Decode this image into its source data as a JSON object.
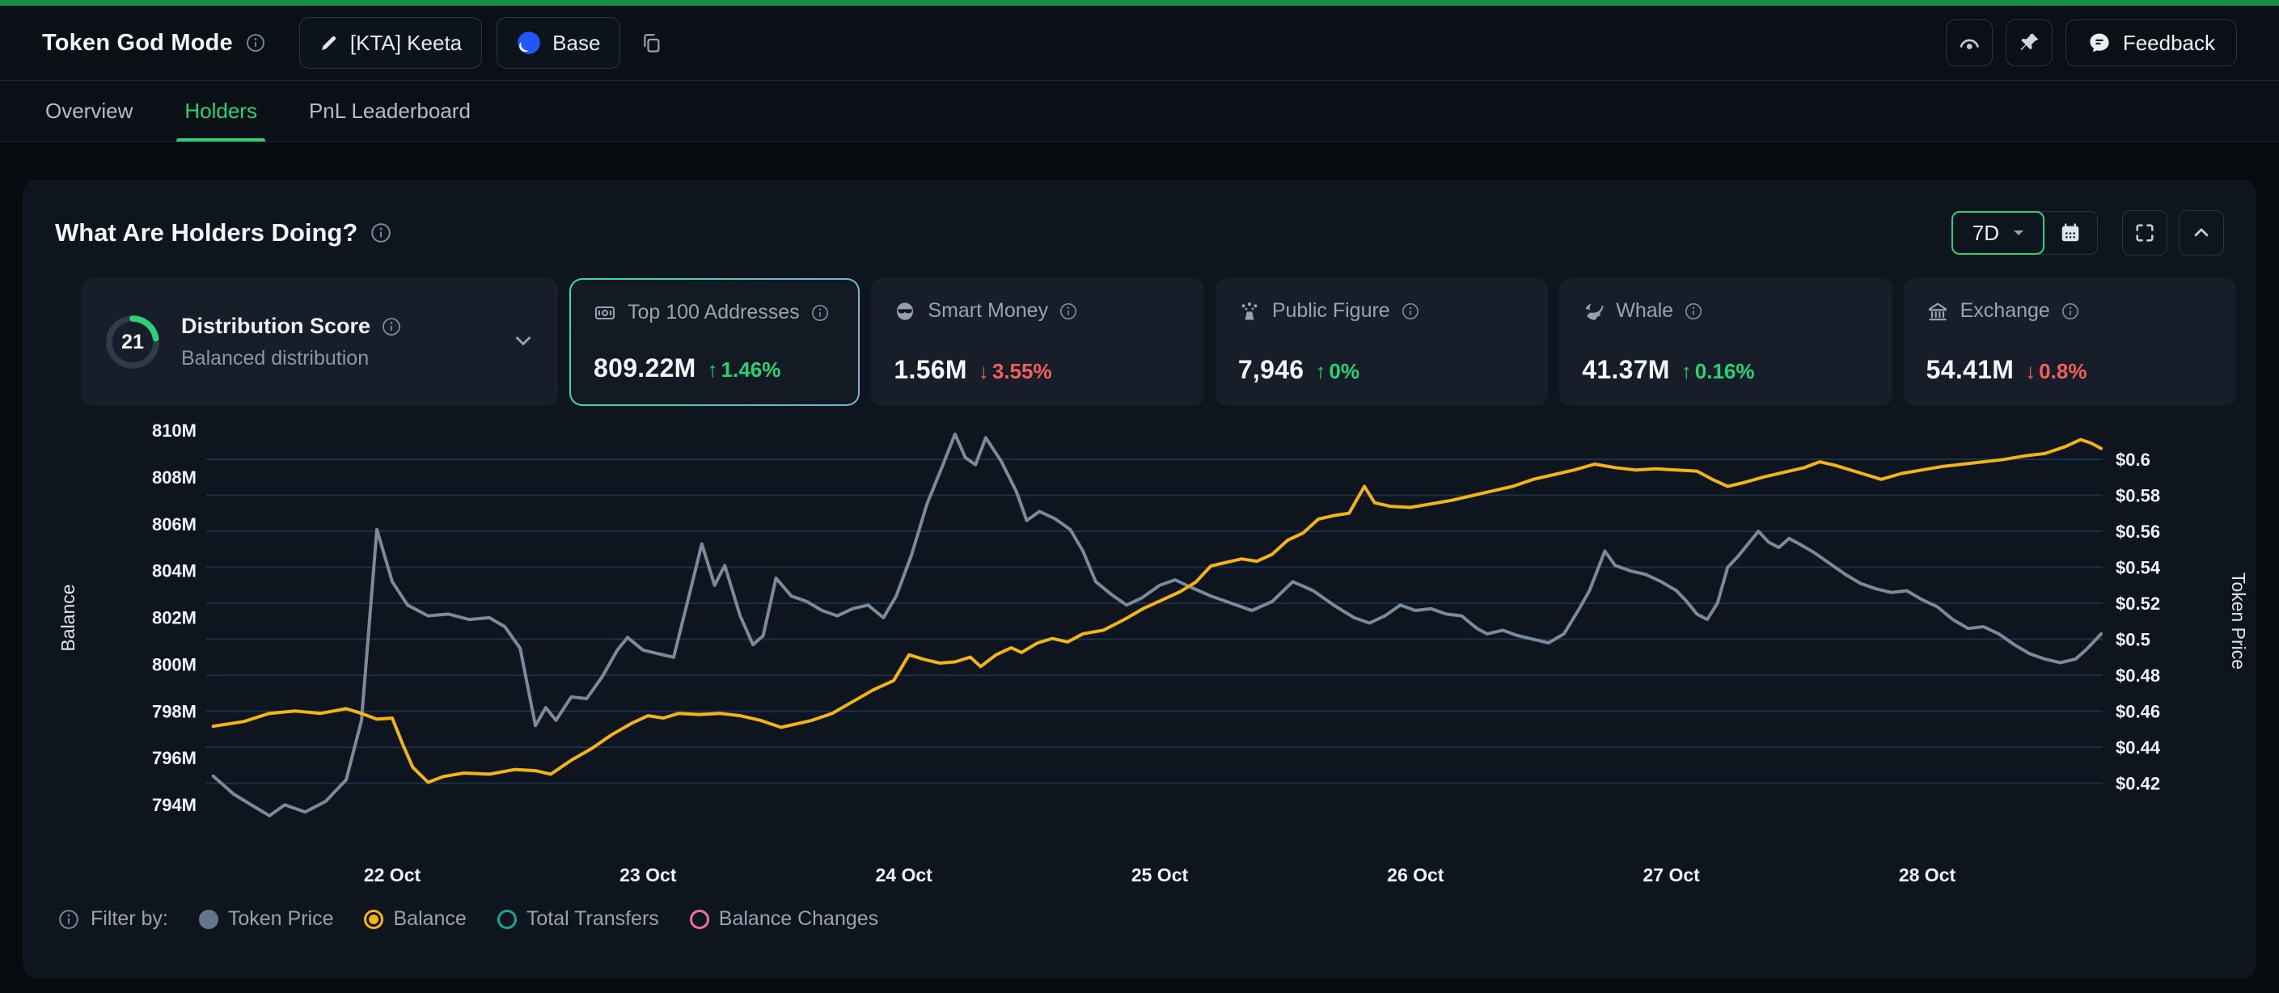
{
  "colors": {
    "accent_green": "#2bd175",
    "down_red": "#f0605c",
    "balance_yellow": "#f2b418",
    "price_gray": "#7b8a9b",
    "grid_blue": "#1c3148",
    "topstrip_green": "#16914c",
    "base_blue": "#2155ff"
  },
  "icons": {
    "info": "circle-i",
    "pencil": "edit",
    "copy": "overlapping-rects",
    "base-logo": "blue-disc",
    "watch": "arc-with-dot",
    "pin": "pushpin",
    "feedback": "speech-bubble",
    "dropdown-caret": "filled-triangle-down",
    "calendar": "calendar-grid",
    "fullscreen": "corner-brackets",
    "collapse": "chevron-up",
    "expand-row": "chevron-down",
    "top100": "banknote",
    "smart-money": "face-sunglasses",
    "public-figure": "person-sparkle",
    "whale": "whale",
    "exchange": "bank-columns"
  },
  "header": {
    "title": "Token God Mode",
    "token_button_label": "[KTA] Keeta",
    "chain_button_label": "Base",
    "feedback_label": "Feedback"
  },
  "tabs": [
    {
      "label": "Overview",
      "active": false
    },
    {
      "label": "Holders",
      "active": true
    },
    {
      "label": "PnL Leaderboard",
      "active": false
    }
  ],
  "panel": {
    "title": "What Are Holders Doing?",
    "range_label": "7D"
  },
  "stat_cards": [
    {
      "label": "Distribution Score",
      "score": "21",
      "subtitle": "Balanced distribution"
    },
    {
      "label": "Top 100 Addresses",
      "value": "809.22M",
      "arrow": "↑",
      "change": "1.46%",
      "direction": "up",
      "selected": true
    },
    {
      "label": "Smart Money",
      "value": "1.56M",
      "arrow": "↓",
      "change": "3.55%",
      "direction": "down",
      "selected": false
    },
    {
      "label": "Public Figure",
      "value": "7,946",
      "arrow": "↑",
      "change": "0%",
      "direction": "up",
      "selected": false
    },
    {
      "label": "Whale",
      "value": "41.37M",
      "arrow": "↑",
      "change": "0.16%",
      "direction": "up",
      "selected": false
    },
    {
      "label": "Exchange",
      "value": "54.41M",
      "arrow": "↓",
      "change": "0.8%",
      "direction": "down",
      "selected": false
    }
  ],
  "chart_data": {
    "type": "line",
    "title": "What Are Holders Doing? - Top 100 Addresses balance vs token price (7D)",
    "grid": "horizontal-only",
    "left_axis": {
      "title": "Balance",
      "tick_labels": [
        "810M",
        "808M",
        "806M",
        "804M",
        "802M",
        "800M",
        "798M",
        "796M",
        "794M"
      ],
      "tick_values": [
        810,
        808,
        806,
        804,
        802,
        800,
        798,
        796,
        794
      ],
      "unit": "M tokens",
      "ylim": [
        793.3,
        811.4
      ]
    },
    "right_axis": {
      "title": "Token Price",
      "tick_labels": [
        "$0.6",
        "$0.58",
        "$0.56",
        "$0.54",
        "$0.52",
        "$0.5",
        "$0.48",
        "$0.46",
        "$0.44",
        "$0.42"
      ],
      "tick_values": [
        0.6,
        0.58,
        0.56,
        0.54,
        0.52,
        0.5,
        0.48,
        0.46,
        0.44,
        0.42
      ],
      "unit": "USD",
      "ylim": [
        0.3975,
        0.6252
      ]
    },
    "x_axis": {
      "tick_labels": [
        "22 Oct",
        "23 Oct",
        "24 Oct",
        "25 Oct",
        "26 Oct",
        "27 Oct",
        "28 Oct"
      ],
      "tick_days": [
        22,
        23,
        24,
        25,
        26,
        27,
        28
      ],
      "domain_days": [
        21.3,
        28.68
      ]
    },
    "series": [
      {
        "name": "Token Price",
        "axis": "right",
        "color": "#7b8a9b",
        "points": [
          [
            21.3,
            0.424
          ],
          [
            21.38,
            0.414
          ],
          [
            21.46,
            0.407
          ],
          [
            21.52,
            0.402
          ],
          [
            21.58,
            0.408
          ],
          [
            21.66,
            0.404
          ],
          [
            21.74,
            0.41
          ],
          [
            21.82,
            0.422
          ],
          [
            21.88,
            0.455
          ],
          [
            21.94,
            0.561
          ],
          [
            22.0,
            0.532
          ],
          [
            22.06,
            0.519
          ],
          [
            22.14,
            0.513
          ],
          [
            22.22,
            0.514
          ],
          [
            22.3,
            0.511
          ],
          [
            22.38,
            0.512
          ],
          [
            22.44,
            0.507
          ],
          [
            22.5,
            0.495
          ],
          [
            22.56,
            0.452
          ],
          [
            22.6,
            0.462
          ],
          [
            22.64,
            0.455
          ],
          [
            22.7,
            0.468
          ],
          [
            22.76,
            0.467
          ],
          [
            22.82,
            0.479
          ],
          [
            22.88,
            0.494
          ],
          [
            22.92,
            0.501
          ],
          [
            22.98,
            0.494
          ],
          [
            23.04,
            0.492
          ],
          [
            23.1,
            0.49
          ],
          [
            23.16,
            0.524
          ],
          [
            23.21,
            0.553
          ],
          [
            23.26,
            0.53
          ],
          [
            23.3,
            0.541
          ],
          [
            23.36,
            0.513
          ],
          [
            23.41,
            0.497
          ],
          [
            23.45,
            0.502
          ],
          [
            23.5,
            0.534
          ],
          [
            23.56,
            0.524
          ],
          [
            23.62,
            0.521
          ],
          [
            23.68,
            0.516
          ],
          [
            23.74,
            0.513
          ],
          [
            23.8,
            0.517
          ],
          [
            23.86,
            0.519
          ],
          [
            23.92,
            0.512
          ],
          [
            23.97,
            0.524
          ],
          [
            24.03,
            0.547
          ],
          [
            24.09,
            0.575
          ],
          [
            24.15,
            0.596
          ],
          [
            24.2,
            0.614
          ],
          [
            24.24,
            0.601
          ],
          [
            24.28,
            0.597
          ],
          [
            24.32,
            0.612
          ],
          [
            24.38,
            0.599
          ],
          [
            24.44,
            0.582
          ],
          [
            24.48,
            0.566
          ],
          [
            24.53,
            0.571
          ],
          [
            24.59,
            0.567
          ],
          [
            24.65,
            0.561
          ],
          [
            24.7,
            0.549
          ],
          [
            24.75,
            0.532
          ],
          [
            24.81,
            0.525
          ],
          [
            24.87,
            0.519
          ],
          [
            24.93,
            0.523
          ],
          [
            25.0,
            0.53
          ],
          [
            25.06,
            0.533
          ],
          [
            25.12,
            0.529
          ],
          [
            25.2,
            0.524
          ],
          [
            25.28,
            0.52
          ],
          [
            25.36,
            0.516
          ],
          [
            25.44,
            0.521
          ],
          [
            25.52,
            0.532
          ],
          [
            25.6,
            0.527
          ],
          [
            25.68,
            0.519
          ],
          [
            25.76,
            0.512
          ],
          [
            25.82,
            0.509
          ],
          [
            25.88,
            0.513
          ],
          [
            25.94,
            0.519
          ],
          [
            26.0,
            0.516
          ],
          [
            26.06,
            0.517
          ],
          [
            26.12,
            0.514
          ],
          [
            26.18,
            0.513
          ],
          [
            26.24,
            0.506
          ],
          [
            26.28,
            0.503
          ],
          [
            26.34,
            0.505
          ],
          [
            26.4,
            0.502
          ],
          [
            26.46,
            0.5
          ],
          [
            26.52,
            0.498
          ],
          [
            26.58,
            0.503
          ],
          [
            26.64,
            0.517
          ],
          [
            26.68,
            0.527
          ],
          [
            26.74,
            0.549
          ],
          [
            26.78,
            0.541
          ],
          [
            26.84,
            0.538
          ],
          [
            26.9,
            0.536
          ],
          [
            26.96,
            0.532
          ],
          [
            27.02,
            0.527
          ],
          [
            27.06,
            0.521
          ],
          [
            27.1,
            0.514
          ],
          [
            27.14,
            0.511
          ],
          [
            27.18,
            0.52
          ],
          [
            27.22,
            0.54
          ],
          [
            27.26,
            0.546
          ],
          [
            27.3,
            0.553
          ],
          [
            27.34,
            0.56
          ],
          [
            27.38,
            0.554
          ],
          [
            27.42,
            0.551
          ],
          [
            27.46,
            0.556
          ],
          [
            27.5,
            0.553
          ],
          [
            27.56,
            0.548
          ],
          [
            27.62,
            0.542
          ],
          [
            27.68,
            0.536
          ],
          [
            27.74,
            0.531
          ],
          [
            27.8,
            0.528
          ],
          [
            27.86,
            0.526
          ],
          [
            27.92,
            0.527
          ],
          [
            27.98,
            0.522
          ],
          [
            28.04,
            0.518
          ],
          [
            28.1,
            0.511
          ],
          [
            28.16,
            0.506
          ],
          [
            28.22,
            0.507
          ],
          [
            28.28,
            0.503
          ],
          [
            28.34,
            0.497
          ],
          [
            28.4,
            0.492
          ],
          [
            28.46,
            0.489
          ],
          [
            28.52,
            0.487
          ],
          [
            28.58,
            0.489
          ],
          [
            28.62,
            0.494
          ],
          [
            28.66,
            0.5
          ],
          [
            28.68,
            0.503
          ]
        ]
      },
      {
        "name": "Balance",
        "axis": "left",
        "color": "#f2b418",
        "points": [
          [
            21.3,
            797.35
          ],
          [
            21.42,
            797.55
          ],
          [
            21.52,
            797.9
          ],
          [
            21.62,
            798.0
          ],
          [
            21.72,
            797.9
          ],
          [
            21.82,
            798.1
          ],
          [
            21.88,
            797.9
          ],
          [
            21.94,
            797.65
          ],
          [
            22.0,
            797.7
          ],
          [
            22.04,
            796.6
          ],
          [
            22.08,
            795.6
          ],
          [
            22.14,
            794.95
          ],
          [
            22.2,
            795.2
          ],
          [
            22.28,
            795.35
          ],
          [
            22.38,
            795.3
          ],
          [
            22.48,
            795.5
          ],
          [
            22.56,
            795.45
          ],
          [
            22.62,
            795.3
          ],
          [
            22.7,
            795.9
          ],
          [
            22.78,
            796.4
          ],
          [
            22.86,
            797.0
          ],
          [
            22.94,
            797.5
          ],
          [
            23.0,
            797.8
          ],
          [
            23.06,
            797.7
          ],
          [
            23.12,
            797.9
          ],
          [
            23.2,
            797.85
          ],
          [
            23.28,
            797.9
          ],
          [
            23.36,
            797.8
          ],
          [
            23.44,
            797.6
          ],
          [
            23.52,
            797.3
          ],
          [
            23.58,
            797.45
          ],
          [
            23.64,
            797.6
          ],
          [
            23.72,
            797.9
          ],
          [
            23.8,
            798.4
          ],
          [
            23.88,
            798.9
          ],
          [
            23.96,
            799.3
          ],
          [
            24.02,
            800.4
          ],
          [
            24.08,
            800.2
          ],
          [
            24.14,
            800.05
          ],
          [
            24.2,
            800.1
          ],
          [
            24.26,
            800.3
          ],
          [
            24.3,
            799.9
          ],
          [
            24.36,
            800.4
          ],
          [
            24.42,
            800.7
          ],
          [
            24.46,
            800.5
          ],
          [
            24.52,
            800.9
          ],
          [
            24.58,
            801.1
          ],
          [
            24.64,
            800.95
          ],
          [
            24.7,
            801.3
          ],
          [
            24.78,
            801.45
          ],
          [
            24.86,
            801.9
          ],
          [
            24.94,
            802.4
          ],
          [
            25.02,
            802.8
          ],
          [
            25.08,
            803.1
          ],
          [
            25.14,
            803.5
          ],
          [
            25.2,
            804.2
          ],
          [
            25.26,
            804.35
          ],
          [
            25.32,
            804.5
          ],
          [
            25.38,
            804.4
          ],
          [
            25.44,
            804.7
          ],
          [
            25.5,
            805.3
          ],
          [
            25.56,
            805.6
          ],
          [
            25.62,
            806.2
          ],
          [
            25.68,
            806.35
          ],
          [
            25.74,
            806.45
          ],
          [
            25.8,
            807.6
          ],
          [
            25.84,
            806.9
          ],
          [
            25.9,
            806.75
          ],
          [
            25.98,
            806.7
          ],
          [
            26.06,
            806.85
          ],
          [
            26.14,
            807.0
          ],
          [
            26.22,
            807.2
          ],
          [
            26.3,
            807.4
          ],
          [
            26.38,
            807.6
          ],
          [
            26.46,
            807.9
          ],
          [
            26.54,
            808.1
          ],
          [
            26.62,
            808.3
          ],
          [
            26.7,
            808.55
          ],
          [
            26.78,
            808.4
          ],
          [
            26.86,
            808.3
          ],
          [
            26.94,
            808.35
          ],
          [
            27.02,
            808.3
          ],
          [
            27.1,
            808.25
          ],
          [
            27.16,
            807.9
          ],
          [
            27.22,
            807.6
          ],
          [
            27.28,
            807.75
          ],
          [
            27.36,
            808.0
          ],
          [
            27.44,
            808.2
          ],
          [
            27.52,
            808.4
          ],
          [
            27.58,
            808.65
          ],
          [
            27.64,
            808.5
          ],
          [
            27.7,
            808.3
          ],
          [
            27.76,
            808.1
          ],
          [
            27.82,
            807.9
          ],
          [
            27.9,
            808.15
          ],
          [
            27.98,
            808.3
          ],
          [
            28.06,
            808.45
          ],
          [
            28.14,
            808.55
          ],
          [
            28.22,
            808.65
          ],
          [
            28.3,
            808.75
          ],
          [
            28.38,
            808.9
          ],
          [
            28.46,
            809.0
          ],
          [
            28.54,
            809.3
          ],
          [
            28.6,
            809.6
          ],
          [
            28.64,
            809.45
          ],
          [
            28.68,
            809.22
          ]
        ]
      }
    ],
    "legend_position": "bottom-left"
  },
  "legend": {
    "info_icon": "info",
    "prefix": "Filter by:",
    "items": [
      {
        "label": "Token Price",
        "color": "#66758a",
        "style": "filled"
      },
      {
        "label": "Balance",
        "color": "#f2b418",
        "style": "ring-dot"
      },
      {
        "label": "Total Transfers",
        "color": "#16a596",
        "style": "ring"
      },
      {
        "label": "Balance Changes",
        "color": "#ee6fa8",
        "style": "ring"
      }
    ]
  }
}
